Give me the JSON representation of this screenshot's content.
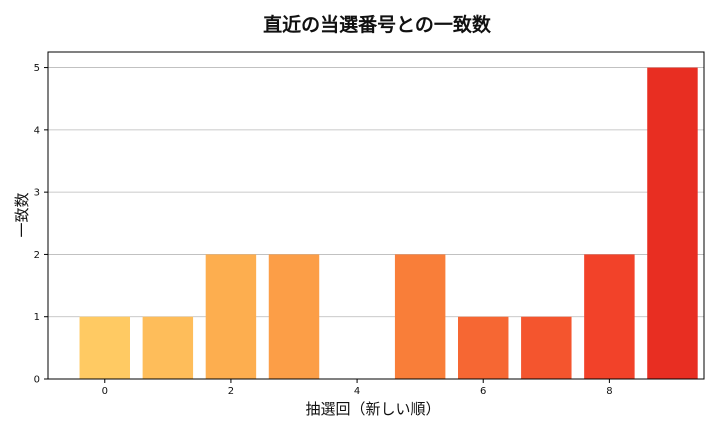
{
  "chart_data": {
    "type": "bar",
    "title": "直近の当選番号との一致数",
    "xlabel": "抽選回（新しい順）",
    "ylabel": "一致数",
    "x": [
      0,
      1,
      2,
      3,
      4,
      5,
      6,
      7,
      8,
      9
    ],
    "values": [
      1,
      1,
      2,
      2,
      0,
      2,
      1,
      1,
      2,
      5
    ],
    "colors": [
      "#FFCA63",
      "#FEBD5A",
      "#FDAE4F",
      "#FC9E47",
      "#FB8E3F",
      "#F97E39",
      "#F66733",
      "#F4552E",
      "#F24229",
      "#E82E22"
    ],
    "xticks": [
      0,
      2,
      4,
      6,
      8
    ],
    "yticks": [
      0,
      1,
      2,
      3,
      4,
      5
    ],
    "xlim": [
      -0.9,
      9.5
    ],
    "ylim": [
      0,
      5.25
    ],
    "grid": "y",
    "legend": "none"
  }
}
